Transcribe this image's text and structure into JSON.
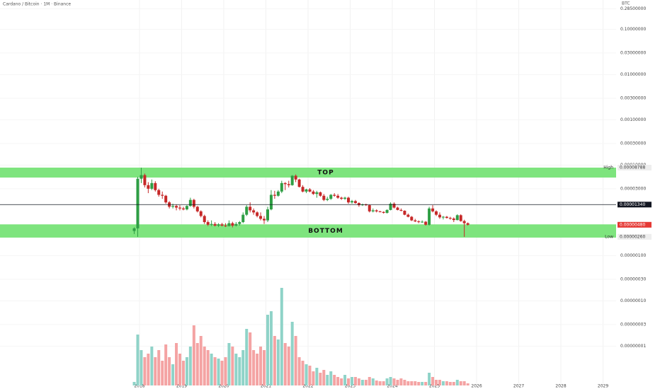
{
  "chart_data": {
    "type": "candlestick",
    "title": "Cardano / Bitcoin · 1M · Binance",
    "currency": "BTC",
    "log": true,
    "grid": true,
    "up_color": "#2e9e44",
    "down_color": "#c62828",
    "volume_up_color": "#8fd3c8",
    "volume_down_color": "#f4a3a3",
    "xlim": [
      2014.69,
      2029.31
    ],
    "xticks": [
      2018,
      2019,
      2020,
      2021,
      2022,
      2023,
      2024,
      2025,
      2026,
      2027,
      2028,
      2029
    ],
    "ylim": [
      1.13e-09,
      0.4435
    ],
    "yticks": [
      {
        "value": 0.285,
        "label": "0.28500000"
      },
      {
        "value": 0.1,
        "label": "0.10000000"
      },
      {
        "value": 0.03,
        "label": "0.03000000"
      },
      {
        "value": 0.01,
        "label": "0.01000000"
      },
      {
        "value": 0.003,
        "label": "0.00300000"
      },
      {
        "value": 0.001,
        "label": "0.00100000"
      },
      {
        "value": 0.0003,
        "label": "0.00030000"
      },
      {
        "value": 0.0001,
        "label": "0.00010000"
      },
      {
        "value": 3e-05,
        "label": "0.00003000"
      },
      {
        "value": 1e-06,
        "label": "0.00000100"
      },
      {
        "value": 3e-07,
        "label": "0.00000030"
      },
      {
        "value": 1e-07,
        "label": "0.00000010"
      },
      {
        "value": 3e-08,
        "label": "0.00000003"
      },
      {
        "value": 1e-08,
        "label": "0.00000001"
      }
    ],
    "price_labels": [
      {
        "value": 8.788e-05,
        "label": "0.00008788",
        "tag": "High",
        "color": "#eeeeee"
      },
      {
        "value": 1.34e-05,
        "label": "0.00001340",
        "color": "#131722"
      },
      {
        "value": 4.8e-06,
        "label": "0.00000480",
        "color": "#e53935"
      },
      {
        "value": 2.6e-06,
        "label": "0.00000260",
        "tag": "Low",
        "color": "#eeeeee"
      }
    ],
    "zones": [
      {
        "label": "TOP",
        "from": 5.3e-05,
        "to": 8.788e-05,
        "color": "#7ee47e"
      },
      {
        "label": "BOTTOM",
        "from": 2.5e-06,
        "to": 4.9e-06,
        "color": "#7ee47e"
      }
    ],
    "x": [
      2017.875,
      2017.958,
      2018.042,
      2018.125,
      2018.208,
      2018.292,
      2018.375,
      2018.458,
      2018.542,
      2018.625,
      2018.708,
      2018.792,
      2018.875,
      2018.958,
      2019.042,
      2019.125,
      2019.208,
      2019.292,
      2019.375,
      2019.458,
      2019.542,
      2019.625,
      2019.708,
      2019.792,
      2019.875,
      2019.958,
      2020.042,
      2020.125,
      2020.208,
      2020.292,
      2020.375,
      2020.458,
      2020.542,
      2020.625,
      2020.708,
      2020.792,
      2020.875,
      2020.958,
      2021.042,
      2021.125,
      2021.208,
      2021.292,
      2021.375,
      2021.458,
      2021.542,
      2021.625,
      2021.708,
      2021.792,
      2021.875,
      2021.958,
      2022.042,
      2022.125,
      2022.208,
      2022.292,
      2022.375,
      2022.458,
      2022.542,
      2022.625,
      2022.708,
      2022.792,
      2022.875,
      2022.958,
      2023.042,
      2023.125,
      2023.208,
      2023.292,
      2023.375,
      2023.458,
      2023.542,
      2023.625,
      2023.708,
      2023.792,
      2023.875,
      2023.958,
      2024.042,
      2024.125,
      2024.208,
      2024.292,
      2024.375,
      2024.458,
      2024.542,
      2024.625,
      2024.708,
      2024.792,
      2024.875,
      2024.958,
      2025.042,
      2025.125,
      2025.208,
      2025.292,
      2025.375,
      2025.458,
      2025.542,
      2025.625,
      2025.708,
      2025.792
    ],
    "ohlc": [
      [
        3.5e-06,
        4.2e-06,
        3e-06,
        4e-06
      ],
      [
        4e-06,
        5.5e-05,
        2.6e-06,
        5e-05
      ],
      [
        5e-05,
        8.788e-05,
        4e-05,
        6e-05
      ],
      [
        6e-05,
        6.5e-05,
        3.2e-05,
        3.6e-05
      ],
      [
        3.6e-05,
        4.2e-05,
        2.4e-05,
        3e-05
      ],
      [
        3e-05,
        4.8e-05,
        2.8e-05,
        4e-05
      ],
      [
        4e-05,
        4.4e-05,
        2.6e-05,
        2.8e-05
      ],
      [
        2.8e-05,
        3e-05,
        2e-05,
        2.2e-05
      ],
      [
        2.2e-05,
        2.6e-05,
        1.8e-05,
        2.1e-05
      ],
      [
        2.1e-05,
        2.2e-05,
        1.4e-05,
        1.5e-05
      ],
      [
        1.5e-05,
        1.6e-05,
        1.1e-05,
        1.2e-05
      ],
      [
        1.2e-05,
        1.4e-05,
        1.1e-05,
        1.25e-05
      ],
      [
        1.25e-05,
        1.35e-05,
        1e-05,
        1.15e-05
      ],
      [
        1.15e-05,
        1.3e-05,
        1e-05,
        1.1e-05
      ],
      [
        1.1e-05,
        1.2e-05,
        1e-05,
        1.05e-05
      ],
      [
        1.05e-05,
        1.3e-05,
        1e-05,
        1.25e-05
      ],
      [
        1.25e-05,
        1.9e-05,
        1.2e-05,
        1.7e-05
      ],
      [
        1.7e-05,
        1.8e-05,
        1.1e-05,
        1.2e-05
      ],
      [
        1.2e-05,
        1.25e-05,
        9e-06,
        9.5e-06
      ],
      [
        9.5e-06,
        1e-05,
        7e-06,
        7.5e-06
      ],
      [
        7.5e-06,
        8e-06,
        5e-06,
        5.5e-06
      ],
      [
        5.5e-06,
        6e-06,
        4.5e-06,
        4.8e-06
      ],
      [
        4.8e-06,
        6e-06,
        4.5e-06,
        5e-06
      ],
      [
        5e-06,
        5.5e-06,
        4.4e-06,
        4.6e-06
      ],
      [
        4.6e-06,
        5.2e-06,
        4.3e-06,
        4.9e-06
      ],
      [
        4.9e-06,
        5.3e-06,
        4.4e-06,
        4.6e-06
      ],
      [
        4.6e-06,
        5.2e-06,
        4.3e-06,
        4.5e-06
      ],
      [
        4.5e-06,
        6e-06,
        4.4e-06,
        5.2e-06
      ],
      [
        5.2e-06,
        5.6e-06,
        4.2e-06,
        4.6e-06
      ],
      [
        4.6e-06,
        5.5e-06,
        4.4e-06,
        5e-06
      ],
      [
        5e-06,
        5.8e-06,
        4.6e-06,
        5.5e-06
      ],
      [
        5.5e-06,
        9e-06,
        5.2e-06,
        8e-06
      ],
      [
        8e-06,
        1.3e-05,
        7.5e-06,
        1.2e-05
      ],
      [
        1.2e-05,
        1.5e-05,
        9e-06,
        1e-05
      ],
      [
        1e-05,
        1.1e-05,
        8e-06,
        9e-06
      ],
      [
        9e-06,
        9.5e-06,
        7e-06,
        7.5e-06
      ],
      [
        7.5e-06,
        9e-06,
        6e-06,
        6.5e-06
      ],
      [
        6.5e-06,
        7.5e-06,
        5e-06,
        6e-06
      ],
      [
        6e-06,
        1.2e-05,
        5.5e-06,
        1.05e-05
      ],
      [
        1.05e-05,
        2.8e-05,
        1e-05,
        2.2e-05
      ],
      [
        2.2e-05,
        2.7e-05,
        1.8e-05,
        2.1e-05
      ],
      [
        2.1e-05,
        2.8e-05,
        2e-05,
        2.6e-05
      ],
      [
        2.6e-05,
        4.5e-05,
        2.4e-05,
        4e-05
      ],
      [
        4e-05,
        4.2e-05,
        2.8e-05,
        3.8e-05
      ],
      [
        3.8e-05,
        4.5e-05,
        3.2e-05,
        3.6e-05
      ],
      [
        3.6e-05,
        6e-05,
        3.5e-05,
        5.8e-05
      ],
      [
        5.8e-05,
        6.2e-05,
        4.2e-05,
        4.8e-05
      ],
      [
        4.8e-05,
        5e-05,
        3.2e-05,
        3.3e-05
      ],
      [
        3.3e-05,
        3.6e-05,
        2.5e-05,
        2.6e-05
      ],
      [
        2.6e-05,
        3e-05,
        2.4e-05,
        2.9e-05
      ],
      [
        2.9e-05,
        3.1e-05,
        2.5e-05,
        2.6e-05
      ],
      [
        2.6e-05,
        2.8e-05,
        2.2e-05,
        2.3e-05
      ],
      [
        2.3e-05,
        2.7e-05,
        1.9e-05,
        2.5e-05
      ],
      [
        2.5e-05,
        2.6e-05,
        2e-05,
        2.1e-05
      ],
      [
        2.1e-05,
        2.3e-05,
        1.6e-05,
        1.7e-05
      ],
      [
        1.7e-05,
        2e-05,
        1.6e-05,
        1.8e-05
      ],
      [
        1.8e-05,
        2.3e-05,
        1.7e-05,
        2.2e-05
      ],
      [
        2.2e-05,
        2.4e-05,
        2e-05,
        2.1e-05
      ],
      [
        2.1e-05,
        2.3e-05,
        1.8e-05,
        1.9e-05
      ],
      [
        1.9e-05,
        2e-05,
        1.7e-05,
        1.8e-05
      ],
      [
        1.8e-05,
        2e-05,
        1.7e-05,
        1.9e-05
      ],
      [
        1.9e-05,
        2e-05,
        1.4e-05,
        1.5e-05
      ],
      [
        1.5e-05,
        1.7e-05,
        1.4e-05,
        1.6e-05
      ],
      [
        1.6e-05,
        1.7e-05,
        1.4e-05,
        1.45e-05
      ],
      [
        1.45e-05,
        1.5e-05,
        1.2e-05,
        1.3e-05
      ],
      [
        1.3e-05,
        1.4e-05,
        1.25e-05,
        1.35e-05
      ],
      [
        1.35e-05,
        1.4e-05,
        1.25e-05,
        1.3e-05
      ],
      [
        1.3e-05,
        1.35e-05,
        9e-06,
        9.5e-06
      ],
      [
        9.5e-06,
        1.1e-05,
        9e-06,
        1e-05
      ],
      [
        1e-05,
        1.05e-05,
        9e-06,
        9.5e-06
      ],
      [
        9.5e-06,
        9.8e-06,
        9e-06,
        9.2e-06
      ],
      [
        9.2e-06,
        9.5e-06,
        8.5e-06,
        8.8e-06
      ],
      [
        8.8e-06,
        1.05e-05,
        8.5e-06,
        1.02e-05
      ],
      [
        1.02e-05,
        1.5e-05,
        1e-05,
        1.4e-05
      ],
      [
        1.4e-05,
        1.5e-05,
        1.1e-05,
        1.15e-05
      ],
      [
        1.15e-05,
        1.2e-05,
        1e-05,
        1.02e-05
      ],
      [
        1.02e-05,
        1.1e-05,
        9.5e-06,
        9.8e-06
      ],
      [
        9.8e-06,
        1e-05,
        7.8e-06,
        8e-06
      ],
      [
        8e-06,
        8.5e-06,
        7e-06,
        7.2e-06
      ],
      [
        7.2e-06,
        7.5e-06,
        5.8e-06,
        6e-06
      ],
      [
        6e-06,
        6.5e-06,
        5.5e-06,
        5.7e-06
      ],
      [
        5.7e-06,
        6e-06,
        5.2e-06,
        5.5e-06
      ],
      [
        5.5e-06,
        6e-06,
        5.3e-06,
        5.6e-06
      ],
      [
        5.6e-06,
        5.8e-06,
        4.6e-06,
        4.8e-06
      ],
      [
        4.8e-06,
        1.2e-05,
        4.6e-06,
        1.1e-05
      ],
      [
        1.1e-05,
        1.3e-05,
        9e-06,
        9.5e-06
      ],
      [
        9.5e-06,
        1e-05,
        7.5e-06,
        8e-06
      ],
      [
        8e-06,
        9e-06,
        6.5e-06,
        7e-06
      ],
      [
        7e-06,
        7.5e-06,
        6.3e-06,
        7.2e-06
      ],
      [
        7.2e-06,
        7.5e-06,
        6.6e-06,
        6.8e-06
      ],
      [
        6.8e-06,
        7.2e-06,
        6.2e-06,
        6.6e-06
      ],
      [
        6.6e-06,
        7e-06,
        5.5e-06,
        6.1e-06
      ],
      [
        6.1e-06,
        8.2e-06,
        6e-06,
        7.8e-06
      ],
      [
        7.8e-06,
        8.2e-06,
        5.6e-06,
        5.8e-06
      ],
      [
        5.8e-06,
        6.2e-06,
        2.6e-06,
        5.2e-06
      ],
      [
        5.2e-06,
        5.4e-06,
        4.6e-06,
        4.8e-06
      ]
    ],
    "vlim": [
      0,
      150
    ],
    "volume": [
      5,
      72,
      50,
      40,
      45,
      55,
      40,
      50,
      35,
      58,
      40,
      30,
      60,
      45,
      35,
      40,
      55,
      85,
      60,
      70,
      55,
      50,
      45,
      40,
      38,
      35,
      40,
      60,
      55,
      45,
      40,
      50,
      80,
      75,
      50,
      45,
      55,
      50,
      100,
      105,
      70,
      65,
      138,
      60,
      55,
      90,
      70,
      40,
      35,
      30,
      28,
      20,
      25,
      18,
      22,
      15,
      20,
      15,
      12,
      10,
      15,
      10,
      12,
      12,
      10,
      8,
      8,
      12,
      10,
      7,
      6,
      6,
      10,
      12,
      10,
      8,
      10,
      8,
      6,
      6,
      6,
      5,
      5,
      5,
      18,
      12,
      8,
      8,
      6,
      6,
      5,
      5,
      8,
      6,
      6,
      3
    ]
  }
}
